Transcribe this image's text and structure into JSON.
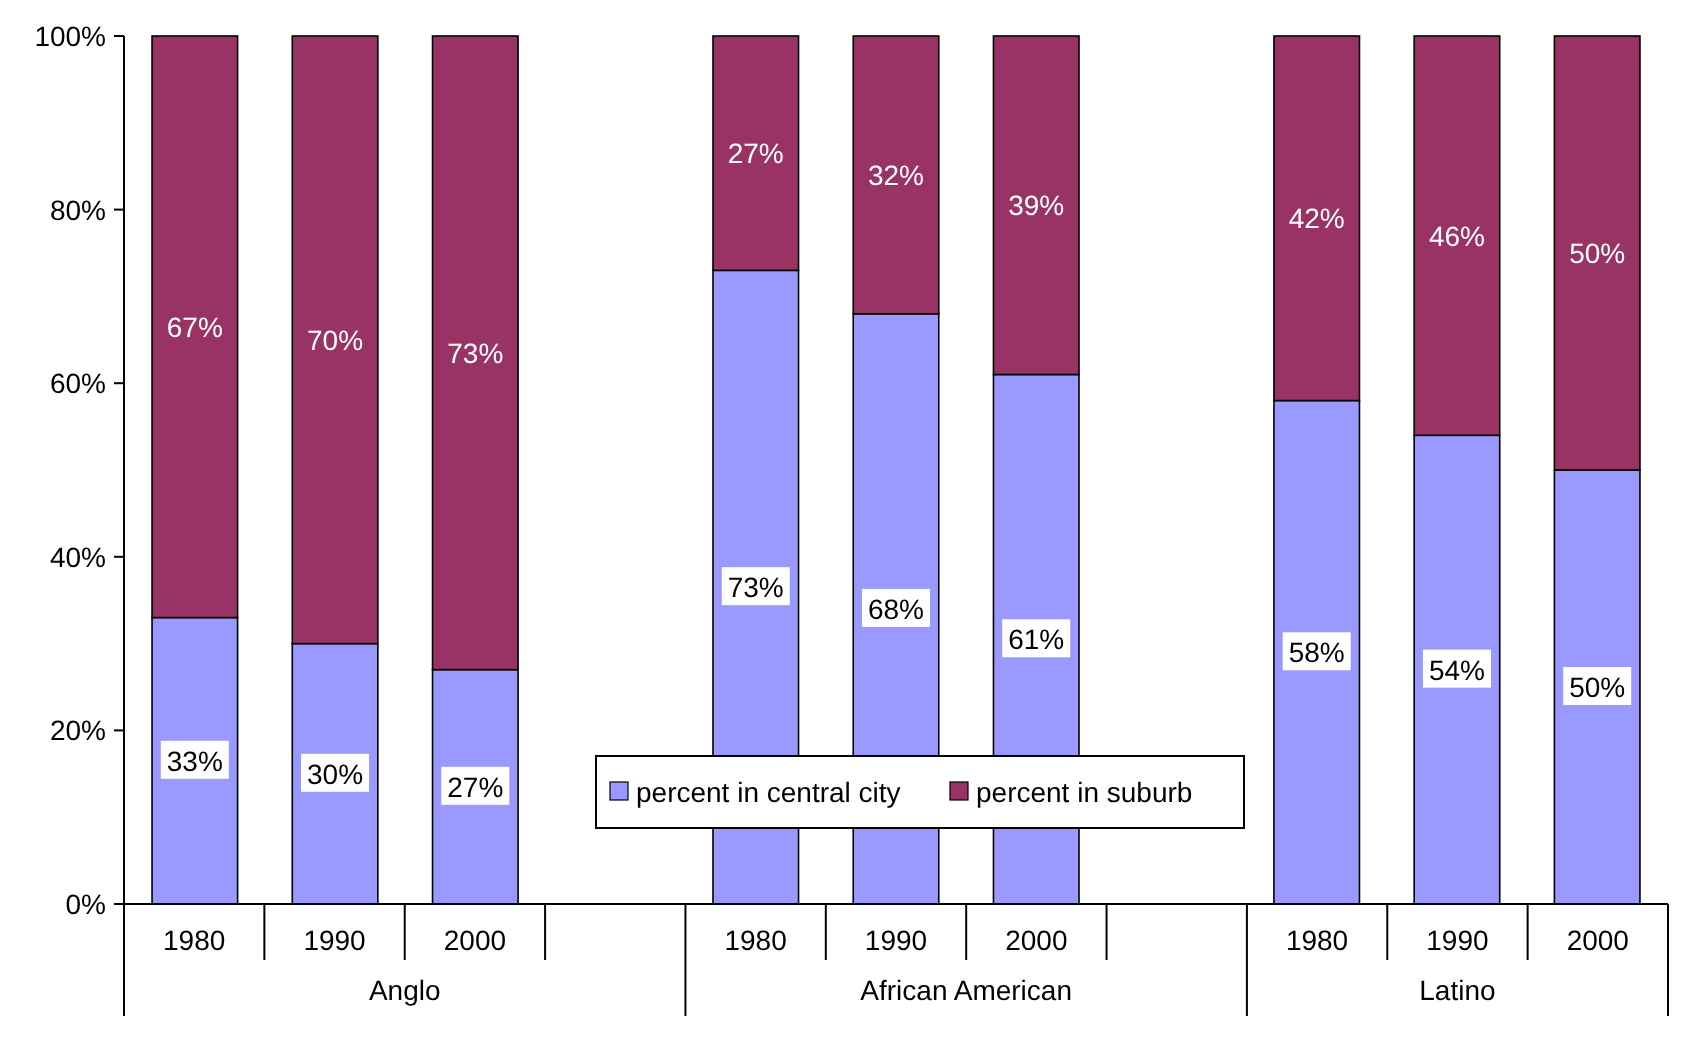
{
  "chart_data": {
    "type": "bar",
    "stacked": true,
    "categories": [
      "1980",
      "1990",
      "2000",
      null,
      "1980",
      "1990",
      "2000",
      null,
      "1980",
      "1990",
      "2000"
    ],
    "series": [
      {
        "name": "percent in central city",
        "color": "#9999ff",
        "values": [
          33,
          30,
          27,
          null,
          73,
          68,
          61,
          null,
          58,
          54,
          50
        ],
        "value_labels": [
          "33%",
          "30%",
          "27%",
          null,
          "73%",
          "68%",
          "61%",
          null,
          "58%",
          "54%",
          "50%"
        ]
      },
      {
        "name": "percent in suburb",
        "color": "#993366",
        "values": [
          67,
          70,
          73,
          null,
          27,
          32,
          39,
          null,
          42,
          46,
          50
        ],
        "value_labels": [
          "67%",
          "70%",
          "73%",
          null,
          "27%",
          "32%",
          "39%",
          null,
          "42%",
          "46%",
          "50%"
        ]
      }
    ],
    "ylim": [
      0,
      100
    ],
    "yticks": [
      {
        "value": 0,
        "label": "0%"
      },
      {
        "value": 20,
        "label": "20%"
      },
      {
        "value": 40,
        "label": "40%"
      },
      {
        "value": 60,
        "label": "60%"
      },
      {
        "value": 80,
        "label": "80%"
      },
      {
        "value": 100,
        "label": "100%"
      }
    ],
    "annotations": [
      "Anglo",
      "African American",
      "Latino"
    ],
    "legend": "bottom",
    "grid": false
  }
}
